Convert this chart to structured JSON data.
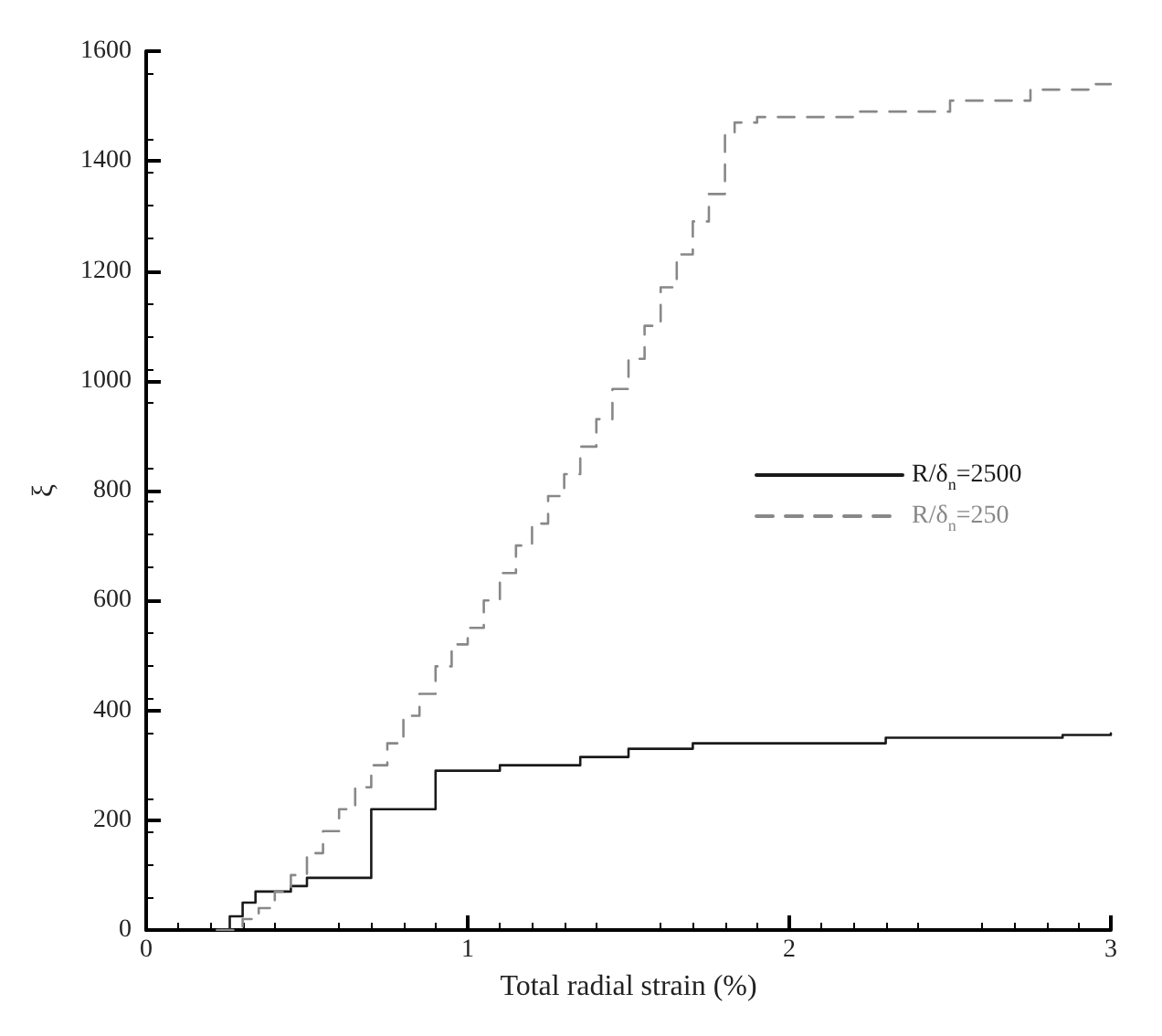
{
  "chart_data": {
    "type": "step",
    "xlabel": "Total radial strain (%)",
    "ylabel": "ξ",
    "xlim": [
      0,
      3
    ],
    "xticks": [
      0,
      1,
      2,
      3
    ],
    "ylim": [
      0,
      1600
    ],
    "yticks": [
      0,
      200,
      400,
      600,
      800,
      1000,
      1200,
      1400,
      1600
    ],
    "grid": false,
    "legend": "right",
    "marker": "none",
    "series": [
      {
        "name": "R/δ$_{n}$=2500",
        "color": "#1a1a1a",
        "line_style": "solid",
        "x": [
          0.22,
          0.26,
          0.3,
          0.34,
          0.45,
          0.5,
          0.7,
          0.9,
          1.1,
          1.35,
          1.5,
          1.7,
          2.3,
          2.85,
          3.0
        ],
        "values": [
          0,
          25,
          50,
          70,
          80,
          95,
          220,
          290,
          300,
          315,
          330,
          340,
          350,
          355,
          358
        ]
      },
      {
        "name": "R/δ$_{n}$=250",
        "color": "#888888",
        "line_style": "dashed",
        "x": [
          0.22,
          0.3,
          0.35,
          0.4,
          0.45,
          0.5,
          0.55,
          0.6,
          0.65,
          0.7,
          0.75,
          0.8,
          0.85,
          0.9,
          0.95,
          1.0,
          1.05,
          1.1,
          1.15,
          1.2,
          1.25,
          1.3,
          1.35,
          1.4,
          1.45,
          1.5,
          1.55,
          1.6,
          1.65,
          1.7,
          1.75,
          1.8,
          1.83,
          1.9,
          2.2,
          2.5,
          2.75,
          2.95,
          3.0
        ],
        "values": [
          0,
          20,
          40,
          70,
          100,
          140,
          180,
          220,
          260,
          300,
          340,
          390,
          430,
          480,
          520,
          550,
          600,
          650,
          700,
          740,
          790,
          830,
          880,
          930,
          985,
          1040,
          1100,
          1170,
          1230,
          1290,
          1340,
          1450,
          1470,
          1480,
          1490,
          1510,
          1530,
          1540,
          1540
        ]
      }
    ]
  }
}
